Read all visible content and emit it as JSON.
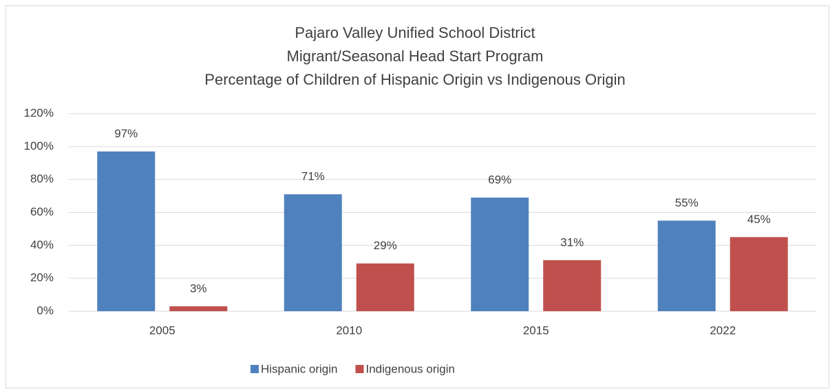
{
  "chart_data": {
    "type": "bar",
    "title": [
      "Pajaro Valley Unified School District",
      "Migrant/Seasonal Head Start Program",
      "Percentage of Children of Hispanic Origin vs Indigenous Origin"
    ],
    "categories": [
      "2005",
      "2010",
      "2015",
      "2022"
    ],
    "series": [
      {
        "name": "Hispanic origin",
        "color": "#4f81bd",
        "values": [
          97,
          71,
          69,
          55
        ],
        "value_labels": [
          "97%",
          "71%",
          "69%",
          "55%"
        ]
      },
      {
        "name": "Indigenous origin",
        "color": "#c0504d",
        "values": [
          3,
          29,
          31,
          45
        ],
        "value_labels": [
          "3%",
          "29%",
          "31%",
          "45%"
        ]
      }
    ],
    "ylim": [
      0,
      120
    ],
    "yticks": [
      {
        "value": 0,
        "label": "0%"
      },
      {
        "value": 20,
        "label": "20%"
      },
      {
        "value": 40,
        "label": "40%"
      },
      {
        "value": 60,
        "label": "60%"
      },
      {
        "value": 80,
        "label": "80%"
      },
      {
        "value": 100,
        "label": "100%"
      },
      {
        "value": 120,
        "label": "120%"
      }
    ],
    "grid": true,
    "legend": "bottom"
  }
}
